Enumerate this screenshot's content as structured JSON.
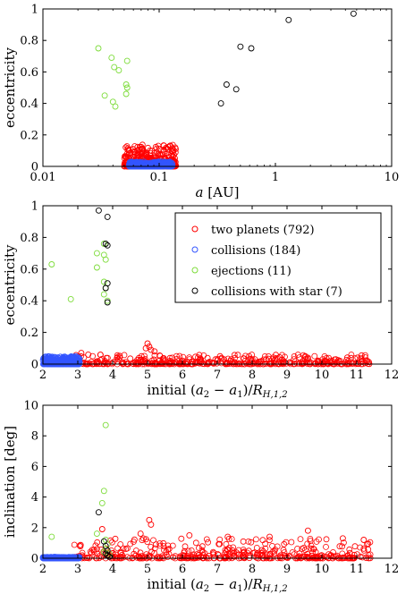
{
  "chart_data": [
    {
      "type": "scatter",
      "xlabel": "a [AU]",
      "ylabel": "eccentricity",
      "xscale": "log",
      "xlim": [
        0.01,
        10
      ],
      "ylim": [
        0,
        1
      ],
      "xticks": [
        0.01,
        0.1,
        1,
        10
      ],
      "xtick_labels": [
        "0.01",
        "0.1",
        "1",
        "10"
      ],
      "yticks": [
        0,
        0.2,
        0.4,
        0.6,
        0.8,
        1
      ],
      "ytick_labels": [
        "0",
        "0.2",
        "0.4",
        "0.6",
        "0.8",
        "1"
      ],
      "grid": false,
      "series": [
        {
          "color": "#ff0000",
          "cloud": {
            "xmin": 0.05,
            "xmax": 0.14,
            "ymin": 0,
            "ymax": 0.14,
            "density": "dense"
          }
        },
        {
          "color": "#3355ff",
          "cloud": {
            "xmin": 0.055,
            "xmax": 0.13,
            "ymin": 0,
            "ymax": 0.03,
            "density": "dense"
          }
        },
        {
          "color": "#7ddc3a",
          "points": [
            [
              0.03,
              0.75
            ],
            [
              0.039,
              0.69
            ],
            [
              0.041,
              0.63
            ],
            [
              0.045,
              0.61
            ],
            [
              0.053,
              0.67
            ],
            [
              0.052,
              0.52
            ],
            [
              0.053,
              0.5
            ],
            [
              0.052,
              0.46
            ],
            [
              0.034,
              0.45
            ],
            [
              0.04,
              0.41
            ],
            [
              0.042,
              0.38
            ]
          ]
        },
        {
          "color": "#000000",
          "points": [
            [
              0.34,
              0.4
            ],
            [
              0.38,
              0.52
            ],
            [
              0.46,
              0.49
            ],
            [
              0.5,
              0.76
            ],
            [
              0.62,
              0.75
            ],
            [
              1.3,
              0.93
            ],
            [
              4.7,
              0.97
            ]
          ]
        }
      ]
    },
    {
      "type": "scatter",
      "xlabel": "initial (a2 − a1)/RH,1,2",
      "ylabel": "eccentricity",
      "xlim": [
        2,
        12
      ],
      "ylim": [
        0,
        1
      ],
      "xticks": [
        2,
        3,
        4,
        5,
        6,
        7,
        8,
        9,
        10,
        11,
        12
      ],
      "xtick_labels": [
        "2",
        "3",
        "4",
        "5",
        "6",
        "7",
        "8",
        "9",
        "10",
        "11",
        "12"
      ],
      "yticks": [
        0,
        0.2,
        0.4,
        0.6,
        0.8,
        1
      ],
      "ytick_labels": [
        "0",
        "0.2",
        "0.4",
        "0.6",
        "0.8",
        "1"
      ],
      "grid": false,
      "legend_position": "top-right",
      "series": [
        {
          "name": "two planets (792)",
          "color": "#ff0000",
          "cloud": {
            "xmin": 2.9,
            "xmax": 11.4,
            "ymin": 0,
            "ymax": 0.06,
            "density": "dense"
          },
          "points": [
            [
              5.0,
              0.13
            ],
            [
              5.05,
              0.11
            ],
            [
              4.95,
              0.1
            ],
            [
              5.1,
              0.09
            ],
            [
              5.2,
              0.08
            ],
            [
              3.1,
              0.07
            ],
            [
              3.3,
              0.06
            ],
            [
              9.6,
              0.04
            ],
            [
              10.4,
              0.03
            ],
            [
              11.3,
              0.02
            ]
          ]
        },
        {
          "name": "collisions (184)",
          "color": "#3355ff",
          "cloud": {
            "xmin": 2.0,
            "xmax": 3.05,
            "ymin": 0,
            "ymax": 0.05,
            "density": "dense"
          }
        },
        {
          "name": "ejections (11)",
          "color": "#7ddc3a",
          "points": [
            [
              2.25,
              0.63
            ],
            [
              3.55,
              0.7
            ],
            [
              3.75,
              0.69
            ],
            [
              3.55,
              0.61
            ],
            [
              3.75,
              0.76
            ],
            [
              3.8,
              0.66
            ],
            [
              3.75,
              0.52
            ],
            [
              3.8,
              0.48
            ],
            [
              3.75,
              0.44
            ],
            [
              3.85,
              0.4
            ],
            [
              2.8,
              0.41
            ]
          ]
        },
        {
          "name": "collisions with star (7)",
          "color": "#000000",
          "points": [
            [
              3.6,
              0.97
            ],
            [
              3.85,
              0.93
            ],
            [
              3.8,
              0.76
            ],
            [
              3.85,
              0.75
            ],
            [
              3.85,
              0.51
            ],
            [
              3.85,
              0.39
            ],
            [
              3.8,
              0.48
            ]
          ]
        }
      ]
    },
    {
      "type": "scatter",
      "xlabel": "initial (a2 − a1)/RH,1,2",
      "ylabel": "inclination [deg]",
      "xlim": [
        2,
        12
      ],
      "ylim": [
        0,
        10
      ],
      "xticks": [
        2,
        3,
        4,
        5,
        6,
        7,
        8,
        9,
        10,
        11,
        12
      ],
      "xtick_labels": [
        "2",
        "3",
        "4",
        "5",
        "6",
        "7",
        "8",
        "9",
        "10",
        "11",
        "12"
      ],
      "yticks": [
        0,
        2,
        4,
        6,
        8,
        10
      ],
      "ytick_labels": [
        "0",
        "2",
        "4",
        "6",
        "8",
        "10"
      ],
      "grid": false,
      "series": [
        {
          "color": "#ff0000",
          "cloud": {
            "xmin": 2.9,
            "xmax": 11.4,
            "ymin": 0,
            "ymax": 1.3,
            "density": "dense"
          },
          "points": [
            [
              5.05,
              2.5
            ],
            [
              5.1,
              2.2
            ],
            [
              9.6,
              1.8
            ],
            [
              3.7,
              1.9
            ],
            [
              4.8,
              1.6
            ],
            [
              6.2,
              1.5
            ],
            [
              7.3,
              1.4
            ],
            [
              8.5,
              1.4
            ],
            [
              10.6,
              1.3
            ],
            [
              11.2,
              1.2
            ]
          ]
        },
        {
          "color": "#3355ff",
          "cloud": {
            "xmin": 2.0,
            "xmax": 3.05,
            "ymin": 0,
            "ymax": 0.08,
            "density": "dense"
          }
        },
        {
          "color": "#7ddc3a",
          "points": [
            [
              2.25,
              1.4
            ],
            [
              3.8,
              8.7
            ],
            [
              3.75,
              4.4
            ],
            [
              3.7,
              3.6
            ],
            [
              3.55,
              1.6
            ],
            [
              3.8,
              1.2
            ],
            [
              3.85,
              0.9
            ],
            [
              3.8,
              0.6
            ],
            [
              3.75,
              0.4
            ],
            [
              3.9,
              0.3
            ],
            [
              3.85,
              0.2
            ]
          ]
        },
        {
          "color": "#000000",
          "points": [
            [
              3.6,
              3.0
            ],
            [
              3.75,
              1.1
            ],
            [
              3.8,
              0.8
            ],
            [
              3.85,
              0.5
            ],
            [
              3.8,
              0.3
            ],
            [
              3.85,
              0.2
            ],
            [
              3.9,
              0.1
            ]
          ]
        }
      ]
    }
  ]
}
